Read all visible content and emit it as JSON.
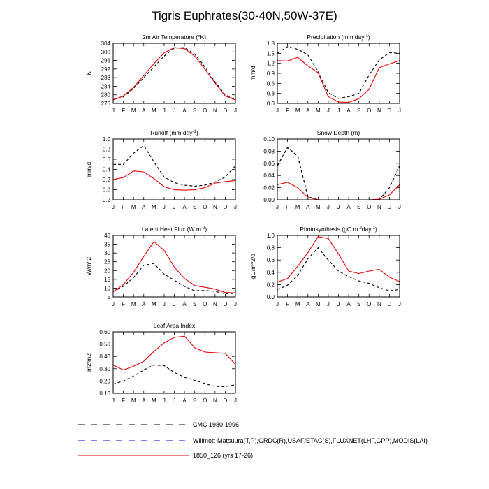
{
  "figure": {
    "title": "Tigris Euphrates(30-40N,50W-37E)",
    "months": [
      "J",
      "F",
      "M",
      "A",
      "M",
      "J",
      "J",
      "A",
      "S",
      "O",
      "N",
      "D",
      "J"
    ]
  },
  "legend": [
    {
      "label": "CMC 1980-1996",
      "color": "#000000",
      "dash": "dashed"
    },
    {
      "label": "Willmott-Matsuura(T,P),GRDC(R),USAF/ETAC(S),FLUXNET(LHF,GPP),MODIS(LAI)",
      "color": "#0000dd",
      "dash": "dashed"
    },
    {
      "label": "1850_126 (yrs 17-26)",
      "color": "#ee0000",
      "dash": "solid"
    }
  ],
  "chart_data": [
    {
      "type": "line",
      "title": "2m Air Temperature (°K)",
      "ylabel": "K",
      "ylim": [
        276,
        304
      ],
      "yticks": [
        276,
        280,
        284,
        288,
        292,
        296,
        300,
        304
      ],
      "yticklabels": [
        "276",
        "280",
        "284",
        "288",
        "292",
        "296",
        "300",
        "304"
      ],
      "series": [
        {
          "name": "CMC 1980-1996",
          "values": [
            277.8,
            279.0,
            283.0,
            288.0,
            293.0,
            298.0,
            301.8,
            302.0,
            299.0,
            293.0,
            286.0,
            280.0,
            277.8
          ]
        },
        {
          "name": "1850_126 (yrs 17-26)",
          "values": [
            277.6,
            279.5,
            283.5,
            289.0,
            294.5,
            299.5,
            302.0,
            301.5,
            298.0,
            292.0,
            285.5,
            279.5,
            277.6
          ]
        }
      ]
    },
    {
      "type": "line",
      "title": "Precipitation (mm day",
      "title_sup": "-1",
      "title_end": ")",
      "ylabel": "mm/d",
      "ylim": [
        0,
        1.8
      ],
      "yticks": [
        0,
        0.3,
        0.6,
        0.9,
        1.2,
        1.5,
        1.8
      ],
      "yticklabels": [
        "0.0",
        "0.3",
        "0.6",
        "0.9",
        "1.2",
        "1.5",
        "1.8"
      ],
      "series": [
        {
          "name": "CMC 1980-1996",
          "values": [
            1.5,
            1.7,
            1.62,
            1.45,
            0.95,
            0.32,
            0.15,
            0.2,
            0.3,
            0.85,
            1.3,
            1.52,
            1.5
          ]
        },
        {
          "name": "1850_126 (yrs 17-26)",
          "values": [
            1.28,
            1.27,
            1.38,
            1.12,
            0.92,
            0.2,
            0.04,
            0.03,
            0.14,
            0.42,
            1.07,
            1.18,
            1.28
          ]
        }
      ]
    },
    {
      "type": "line",
      "title": "Runoff (mm day",
      "title_sup": "-1",
      "title_end": ")",
      "ylabel": "mm/d",
      "ylim": [
        -0.2,
        1.0
      ],
      "yticks": [
        -0.2,
        0,
        0.2,
        0.4,
        0.6,
        0.8,
        1.0
      ],
      "yticklabels": [
        "-0.2",
        "0.0",
        "0.2",
        "0.4",
        "0.6",
        "0.8",
        "1.0"
      ],
      "series": [
        {
          "name": "CMC 1980-1996",
          "values": [
            0.5,
            0.5,
            0.72,
            0.87,
            0.55,
            0.25,
            0.14,
            0.09,
            0.07,
            0.09,
            0.15,
            0.25,
            0.47
          ]
        },
        {
          "name": "1850_126 (yrs 17-26)",
          "values": [
            0.2,
            0.24,
            0.37,
            0.35,
            0.22,
            0.06,
            0.0,
            -0.01,
            0.0,
            0.04,
            0.13,
            0.16,
            0.18
          ]
        }
      ]
    },
    {
      "type": "line",
      "title": "Snow Depth (m)",
      "ylabel": "",
      "ylim": [
        0,
        0.1
      ],
      "yticks": [
        0,
        0.02,
        0.04,
        0.06,
        0.08,
        0.1
      ],
      "yticklabels": [
        "0.00",
        "0.02",
        "0.04",
        "0.06",
        "0.08",
        "0.10"
      ],
      "series": [
        {
          "name": "Willmott-Matsuura(T,P),GRDC(R),USAF/ETAC(S),FLUXNET(LHF,GPP),MODIS(LAI)",
          "values": [
            0.056,
            0.086,
            0.072,
            0.005,
            0.0,
            0.0,
            0.0,
            0.0,
            0.0,
            0.0,
            0.0,
            0.02,
            0.056
          ]
        },
        {
          "name": "CMC 1980-1996",
          "values": [
            0.056,
            0.086,
            0.072,
            0.005,
            0.0,
            0.0,
            0.0,
            0.0,
            0.0,
            0.0,
            0.0,
            0.02,
            0.056
          ]
        },
        {
          "name": "1850_126 (yrs 17-26)",
          "values": [
            0.025,
            0.029,
            0.02,
            0.004,
            0.0,
            0.0,
            0.0,
            0.0,
            0.0,
            0.0,
            0.001,
            0.008,
            0.025
          ]
        }
      ]
    },
    {
      "type": "line",
      "title": "Latent Heat Flux (W m",
      "title_sup": "-2",
      "title_end": ")",
      "ylabel": "W/m^2",
      "ylim": [
        5,
        40
      ],
      "yticks": [
        5,
        10,
        15,
        20,
        25,
        30,
        35,
        40
      ],
      "yticklabels": [
        "5",
        "10",
        "15",
        "20",
        "25",
        "30",
        "35",
        "40"
      ],
      "series": [
        {
          "name": "CMC 1980-1996",
          "values": [
            8.0,
            11.0,
            16.0,
            23.0,
            24.0,
            18.0,
            14.5,
            11.0,
            8.5,
            8.7,
            8.2,
            6.8,
            7.0
          ]
        },
        {
          "name": "1850_126 (yrs 17-26)",
          "values": [
            8.0,
            12.0,
            19.0,
            28.0,
            36.5,
            31.5,
            22.0,
            15.5,
            11.5,
            10.5,
            9.5,
            7.5,
            7.3
          ]
        }
      ]
    },
    {
      "type": "line",
      "title": "Photosynthesis (gC m",
      "title_sup": "-2",
      "title_mid": "day",
      "title_sup2": "-1",
      "title_end": ")",
      "ylabel": "gC/m^2/d",
      "ylim": [
        0,
        1.0
      ],
      "yticks": [
        0,
        0.2,
        0.4,
        0.6,
        0.8,
        1.0
      ],
      "yticklabels": [
        "0.0",
        "0.2",
        "0.4",
        "0.6",
        "0.8",
        "1.0"
      ],
      "series": [
        {
          "name": "CMC 1980-1996",
          "values": [
            0.12,
            0.19,
            0.35,
            0.62,
            0.8,
            0.6,
            0.42,
            0.33,
            0.26,
            0.22,
            0.15,
            0.1,
            0.12
          ]
        },
        {
          "name": "1850_126 (yrs 17-26)",
          "values": [
            0.24,
            0.3,
            0.5,
            0.72,
            0.98,
            0.95,
            0.7,
            0.42,
            0.38,
            0.42,
            0.45,
            0.32,
            0.25
          ]
        }
      ]
    },
    {
      "type": "line",
      "title": "Leaf Area Index",
      "ylabel": "m2/m2",
      "ylim": [
        0.1,
        0.6
      ],
      "yticks": [
        0.1,
        0.2,
        0.3,
        0.4,
        0.5,
        0.6
      ],
      "yticklabels": [
        "0.10",
        "0.20",
        "0.30",
        "0.40",
        "0.50",
        "0.60"
      ],
      "series": [
        {
          "name": "CMC 1980-1996",
          "values": [
            0.175,
            0.2,
            0.24,
            0.29,
            0.33,
            0.325,
            0.27,
            0.23,
            0.205,
            0.18,
            0.155,
            0.155,
            0.17
          ]
        },
        {
          "name": "1850_126 (yrs 17-26)",
          "values": [
            0.33,
            0.29,
            0.32,
            0.36,
            0.44,
            0.51,
            0.555,
            0.565,
            0.47,
            0.435,
            0.43,
            0.425,
            0.335
          ]
        }
      ]
    }
  ]
}
